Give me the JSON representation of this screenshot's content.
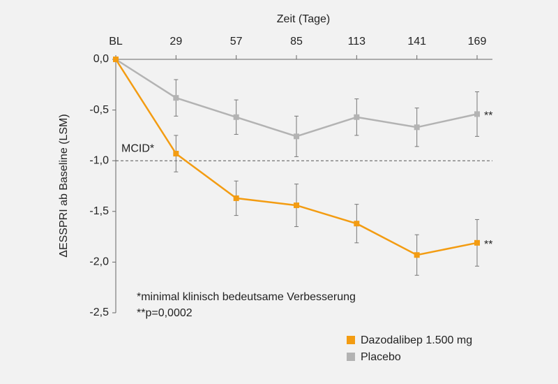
{
  "chart_data": {
    "type": "line",
    "xlabel": "Zeit (Tage)",
    "ylabel": "ΔESSPRI ab Baseline (LSM)",
    "categories": [
      "BL",
      "29",
      "57",
      "85",
      "113",
      "141",
      "169"
    ],
    "ylim": [
      0,
      -2.5
    ],
    "yticks": [
      {
        "value": 0,
        "label": "0,0"
      },
      {
        "value": -0.5,
        "label": "-0,5"
      },
      {
        "value": -1,
        "label": "-1,0"
      },
      {
        "value": -1.5,
        "label": "-1,5"
      },
      {
        "value": -2,
        "label": "-2,0"
      },
      {
        "value": -2.5,
        "label": "-2,5"
      }
    ],
    "series": [
      {
        "name": "Dazodalibep 1.500 mg",
        "color": "#f39c12",
        "values": [
          0,
          -0.93,
          -1.37,
          -1.44,
          -1.62,
          -1.93,
          -1.81
        ],
        "errors": [
          null,
          0.18,
          0.17,
          0.21,
          0.19,
          0.2,
          0.23
        ],
        "end_label": "**"
      },
      {
        "name": "Placebo",
        "color": "#b3b3b3",
        "values": [
          0,
          -0.38,
          -0.57,
          -0.76,
          -0.57,
          -0.67,
          -0.54
        ],
        "errors": [
          null,
          0.18,
          0.17,
          0.2,
          0.18,
          0.19,
          0.22
        ],
        "end_label": "**"
      }
    ],
    "reference_line": {
      "value": -1,
      "label": "MCID*"
    },
    "footnotes": [
      "*minimal klinisch bedeutsame Verbesserung",
      "**p=0,0002"
    ],
    "legend": "bottom-right"
  }
}
